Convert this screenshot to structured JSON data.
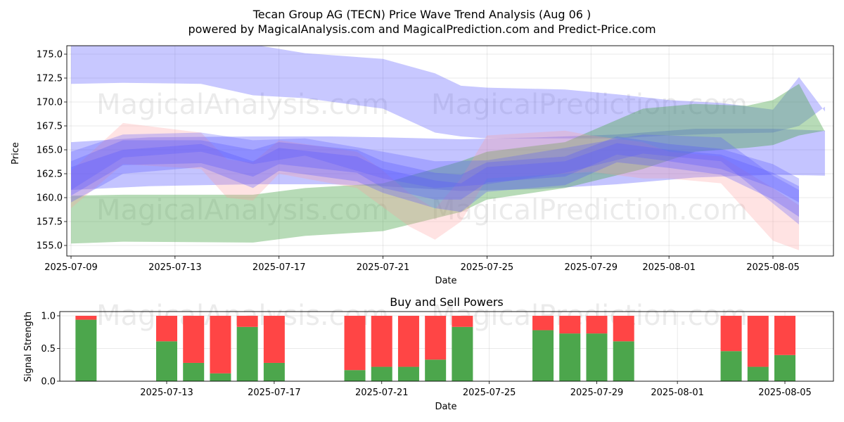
{
  "title": "Tecan Group AG (TECN) Price Wave Trend Analysis (Aug 06 )",
  "subtitle": "powered by MagicalAnalysis.com and MagicalPrediction.com and Predict-Price.com",
  "watermarks": [
    "MagicalAnalysis.com",
    "MagicalPrediction.com"
  ],
  "colors": {
    "buy": "#4ca64c",
    "sell": "#ff4545",
    "band_blue": "#5555ff",
    "band_green": "#4ca64c",
    "band_red": "#ff9999"
  },
  "chart_data": [
    {
      "type": "area",
      "title": "",
      "xlabel": "Date",
      "ylabel": "Price",
      "xlim": [
        "2025-07-09",
        "2025-08-07"
      ],
      "ylim": [
        154.0,
        175.5
      ],
      "x_ticks": [
        "2025-07-09",
        "2025-07-13",
        "2025-07-17",
        "2025-07-21",
        "2025-07-25",
        "2025-07-29",
        "2025-08-01",
        "2025-08-05"
      ],
      "y_ticks": [
        155.0,
        157.5,
        160.0,
        162.5,
        165.0,
        167.5,
        170.0,
        172.5,
        175.0
      ],
      "grid": true,
      "bands": [
        {
          "color": "blue",
          "opacity": 0.32,
          "points": [
            [
              "2025-07-09",
              171.9,
              176.5
            ],
            [
              "2025-07-11",
              172.0,
              176.5
            ],
            [
              "2025-07-14",
              171.9,
              176.2
            ],
            [
              "2025-07-16",
              170.7,
              176.0
            ],
            [
              "2025-07-18",
              170.4,
              175.1
            ],
            [
              "2025-07-21",
              169.3,
              174.5
            ],
            [
              "2025-07-23",
              166.8,
              173.0
            ],
            [
              "2025-07-24",
              166.4,
              171.7
            ],
            [
              "2025-07-25",
              166.2,
              171.5
            ],
            [
              "2025-07-28",
              166.2,
              171.3
            ],
            [
              "2025-07-30",
              166.2,
              170.8
            ],
            [
              "2025-08-01",
              166.5,
              170.2
            ],
            [
              "2025-08-03",
              166.7,
              169.9
            ],
            [
              "2025-08-05",
              166.8,
              169.2
            ],
            [
              "2025-08-06",
              167.5,
              172.6
            ],
            [
              "2025-08-07",
              169.5,
              169.0
            ]
          ]
        },
        {
          "color": "blue",
          "opacity": 0.35,
          "points": [
            [
              "2025-07-09",
              160.8,
              165.8
            ],
            [
              "2025-07-12",
              161.2,
              166.3
            ],
            [
              "2025-07-16",
              161.4,
              166.4
            ],
            [
              "2025-07-19",
              161.4,
              166.4
            ],
            [
              "2025-07-21",
              161.2,
              166.3
            ],
            [
              "2025-07-24",
              160.7,
              166.1
            ],
            [
              "2025-07-27",
              160.9,
              166.3
            ],
            [
              "2025-07-30",
              161.4,
              166.6
            ],
            [
              "2025-08-02",
              162.1,
              167.2
            ],
            [
              "2025-08-05",
              162.4,
              167.2
            ],
            [
              "2025-08-07",
              162.3,
              167.0
            ]
          ]
        },
        {
          "color": "green",
          "opacity": 0.4,
          "points": [
            [
              "2025-07-09",
              155.2,
              160.2
            ],
            [
              "2025-07-11",
              155.4,
              160.3
            ],
            [
              "2025-07-16",
              155.3,
              160.3
            ],
            [
              "2025-07-18",
              156.0,
              161.0
            ],
            [
              "2025-07-21",
              156.5,
              161.5
            ],
            [
              "2025-07-24",
              158.5,
              163.8
            ],
            [
              "2025-07-25",
              159.8,
              164.8
            ],
            [
              "2025-07-28",
              161.0,
              165.8
            ],
            [
              "2025-07-31",
              163.0,
              169.3
            ],
            [
              "2025-08-02",
              164.8,
              169.8
            ],
            [
              "2025-08-04",
              165.2,
              169.6
            ],
            [
              "2025-08-05",
              165.5,
              170.2
            ],
            [
              "2025-08-06",
              166.5,
              171.9
            ],
            [
              "2025-08-07",
              167.0,
              166.9
            ]
          ]
        },
        {
          "color": "red",
          "opacity": 0.28,
          "points": [
            [
              "2025-07-09",
              158.9,
              162.8
            ],
            [
              "2025-07-10",
              161.2,
              165.3
            ],
            [
              "2025-07-11",
              163.5,
              167.8
            ],
            [
              "2025-07-14",
              163.0,
              166.8
            ],
            [
              "2025-07-15",
              160.0,
              164.0
            ],
            [
              "2025-07-16",
              159.7,
              163.7
            ],
            [
              "2025-07-17",
              162.5,
              166.0
            ],
            [
              "2025-07-20",
              161.0,
              164.8
            ],
            [
              "2025-07-21",
              159.0,
              162.8
            ],
            [
              "2025-07-22",
              157.0,
              160.5
            ],
            [
              "2025-07-23",
              155.6,
              158.8
            ],
            [
              "2025-07-24",
              157.5,
              162.0
            ],
            [
              "2025-07-25",
              162.0,
              166.5
            ],
            [
              "2025-07-28",
              162.5,
              167.0
            ],
            [
              "2025-07-29",
              162.7,
              166.5
            ],
            [
              "2025-07-31",
              162.0,
              165.8
            ],
            [
              "2025-08-01",
              162.0,
              164.8
            ],
            [
              "2025-08-03",
              161.5,
              164.3
            ],
            [
              "2025-08-05",
              155.5,
              161.0
            ],
            [
              "2025-08-06",
              154.5,
              159.2
            ]
          ]
        },
        {
          "color": "blue",
          "opacity": 0.3,
          "points": [
            [
              "2025-07-09",
              160.2,
              163.8
            ],
            [
              "2025-07-11",
              163.4,
              166.0
            ],
            [
              "2025-07-14",
              163.6,
              166.0
            ],
            [
              "2025-07-16",
              162.2,
              165.0
            ],
            [
              "2025-07-17",
              163.5,
              165.8
            ],
            [
              "2025-07-20",
              162.6,
              165.0
            ],
            [
              "2025-07-21",
              161.0,
              163.8
            ],
            [
              "2025-07-23",
              159.8,
              162.6
            ],
            [
              "2025-07-24",
              159.8,
              162.4
            ],
            [
              "2025-07-25",
              161.6,
              163.7
            ],
            [
              "2025-07-28",
              162.2,
              164.3
            ],
            [
              "2025-07-30",
              164.5,
              166.4
            ],
            [
              "2025-08-01",
              163.8,
              165.6
            ],
            [
              "2025-08-03",
              163.0,
              165.1
            ],
            [
              "2025-08-05",
              161.0,
              163.5
            ],
            [
              "2025-08-06",
              159.5,
              162.0
            ]
          ]
        },
        {
          "color": "blue",
          "opacity": 0.3,
          "points": [
            [
              "2025-07-09",
              159.5,
              163.2
            ],
            [
              "2025-07-11",
              162.5,
              165.0
            ],
            [
              "2025-07-14",
              163.2,
              165.6
            ],
            [
              "2025-07-16",
              161.0,
              163.8
            ],
            [
              "2025-07-17",
              162.8,
              165.2
            ],
            [
              "2025-07-20",
              161.7,
              164.3
            ],
            [
              "2025-07-21",
              160.5,
              163.0
            ],
            [
              "2025-07-23",
              158.9,
              161.8
            ],
            [
              "2025-07-24",
              158.5,
              161.5
            ],
            [
              "2025-07-25",
              160.6,
              163.2
            ],
            [
              "2025-07-28",
              161.3,
              163.8
            ],
            [
              "2025-07-30",
              163.7,
              165.7
            ],
            [
              "2025-08-01",
              163.1,
              165.0
            ],
            [
              "2025-08-03",
              162.4,
              164.5
            ],
            [
              "2025-08-05",
              159.8,
              162.6
            ],
            [
              "2025-08-06",
              158.0,
              161.2
            ]
          ]
        },
        {
          "color": "blue",
          "opacity": 0.28,
          "points": [
            [
              "2025-07-09",
              160.8,
              164.8
            ],
            [
              "2025-07-11",
              164.2,
              166.6
            ],
            [
              "2025-07-14",
              164.8,
              166.8
            ],
            [
              "2025-07-16",
              163.5,
              166.0
            ],
            [
              "2025-07-18",
              164.4,
              166.2
            ],
            [
              "2025-07-21",
              162.0,
              164.8
            ],
            [
              "2025-07-23",
              161.0,
              163.8
            ],
            [
              "2025-07-25",
              161.4,
              163.9
            ],
            [
              "2025-07-28",
              162.6,
              165.2
            ],
            [
              "2025-07-31",
              164.6,
              166.6
            ],
            [
              "2025-08-03",
              163.8,
              166.3
            ],
            [
              "2025-08-05",
              159.4,
              162.3
            ],
            [
              "2025-08-06",
              157.2,
              160.8
            ]
          ]
        }
      ]
    },
    {
      "type": "bar",
      "title": "Buy and Sell Powers",
      "xlabel": "Date",
      "ylabel": "Signal Strength",
      "ylim": [
        0,
        1.05
      ],
      "y_ticks": [
        0.0,
        0.5,
        1.0
      ],
      "x_ticks": [
        "2025-07-13",
        "2025-07-17",
        "2025-07-21",
        "2025-07-25",
        "2025-07-29",
        "2025-08-01",
        "2025-08-05"
      ],
      "xlim": [
        "2025-07-09",
        "2025-08-07"
      ],
      "grid": true,
      "series": [
        {
          "name": "Buy",
          "color": "green"
        },
        {
          "name": "Sell",
          "color": "red"
        }
      ],
      "bars": [
        {
          "x": "2025-07-10",
          "buy": 0.94,
          "sell": 0.06
        },
        {
          "x": "2025-07-13",
          "buy": 0.61,
          "sell": 0.39
        },
        {
          "x": "2025-07-14",
          "buy": 0.28,
          "sell": 0.72
        },
        {
          "x": "2025-07-15",
          "buy": 0.12,
          "sell": 0.88
        },
        {
          "x": "2025-07-16",
          "buy": 0.83,
          "sell": 0.17
        },
        {
          "x": "2025-07-17",
          "buy": 0.28,
          "sell": 0.72
        },
        {
          "x": "2025-07-20",
          "buy": 0.17,
          "sell": 0.83
        },
        {
          "x": "2025-07-21",
          "buy": 0.22,
          "sell": 0.78
        },
        {
          "x": "2025-07-22",
          "buy": 0.22,
          "sell": 0.78
        },
        {
          "x": "2025-07-23",
          "buy": 0.33,
          "sell": 0.67
        },
        {
          "x": "2025-07-24",
          "buy": 0.83,
          "sell": 0.17
        },
        {
          "x": "2025-07-27",
          "buy": 0.78,
          "sell": 0.22
        },
        {
          "x": "2025-07-28",
          "buy": 0.73,
          "sell": 0.27
        },
        {
          "x": "2025-07-29",
          "buy": 0.73,
          "sell": 0.27
        },
        {
          "x": "2025-07-30",
          "buy": 0.61,
          "sell": 0.39
        },
        {
          "x": "2025-08-03",
          "buy": 0.46,
          "sell": 0.54
        },
        {
          "x": "2025-08-04",
          "buy": 0.22,
          "sell": 0.78
        },
        {
          "x": "2025-08-05",
          "buy": 0.4,
          "sell": 0.6
        }
      ]
    }
  ]
}
